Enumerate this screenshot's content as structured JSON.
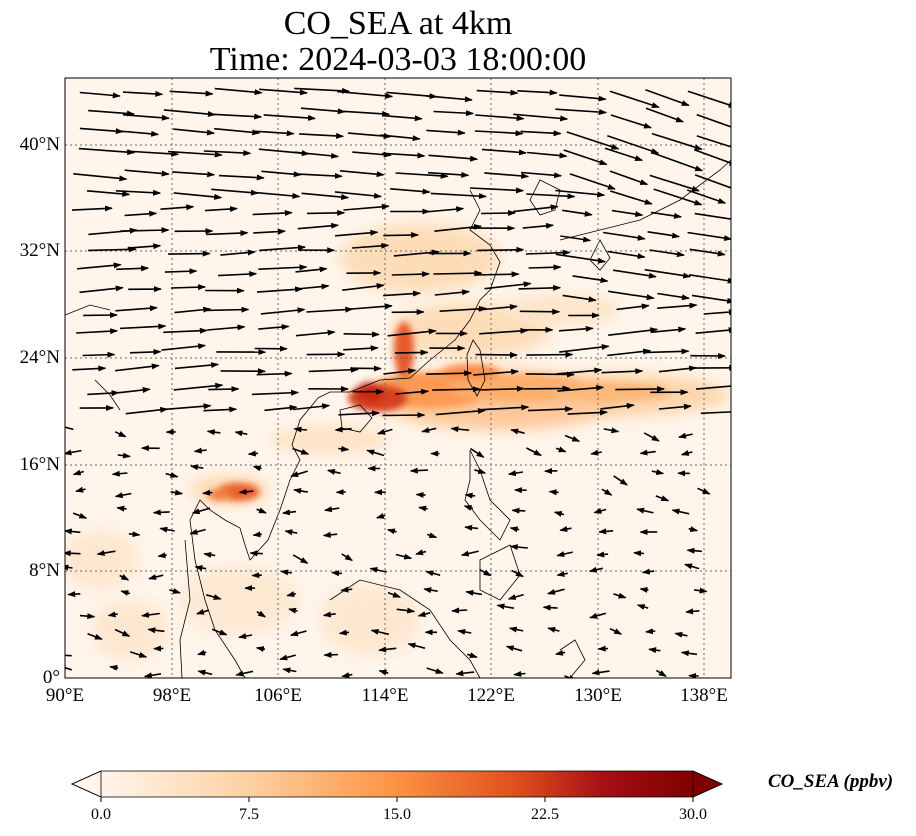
{
  "title": {
    "line1": "CO_SEA at 4km",
    "line2": "Time: 2024-03-03 18:00:00"
  },
  "map": {
    "extent": {
      "lon": [
        90,
        140
      ],
      "lat": [
        0,
        45
      ]
    },
    "lat_ticks": [
      {
        "value": 0,
        "label": "0°"
      },
      {
        "value": 8,
        "label": "8°N"
      },
      {
        "value": 16,
        "label": "16°N"
      },
      {
        "value": 24,
        "label": "24°N"
      },
      {
        "value": 32,
        "label": "32°N"
      },
      {
        "value": 40,
        "label": "40°N"
      }
    ],
    "lon_ticks": [
      {
        "value": 90,
        "label": "90°E"
      },
      {
        "value": 98,
        "label": "98°E"
      },
      {
        "value": 106,
        "label": "106°E"
      },
      {
        "value": 114,
        "label": "114°E"
      },
      {
        "value": 122,
        "label": "122°E"
      },
      {
        "value": 130,
        "label": "130°E"
      },
      {
        "value": 138,
        "label": "138°E"
      }
    ],
    "gridlines": true,
    "background_color": "#fff5eb"
  },
  "colorbar": {
    "label": "CO_SEA (ppbv)",
    "ticks": [
      "0.0",
      "7.5",
      "15.0",
      "22.5",
      "30.0"
    ],
    "range": [
      0,
      30
    ],
    "colors": [
      "#fff5eb",
      "#fdd1a2",
      "#fd9243",
      "#df4f1d",
      "#a50f15",
      "#7f0000"
    ],
    "extend": "both"
  }
}
